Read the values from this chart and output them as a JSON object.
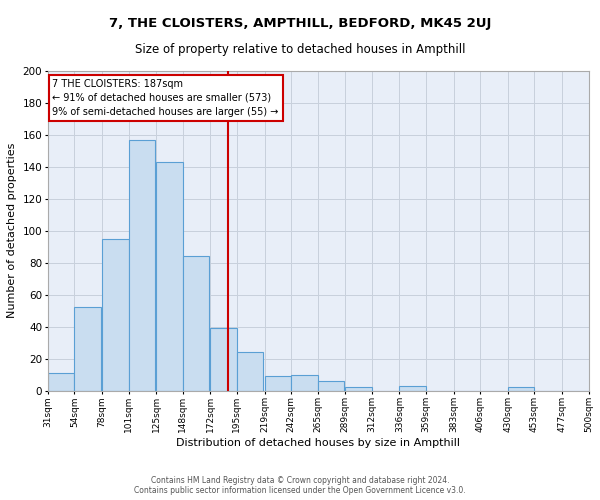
{
  "title": "7, THE CLOISTERS, AMPTHILL, BEDFORD, MK45 2UJ",
  "subtitle": "Size of property relative to detached houses in Ampthill",
  "xlabel": "Distribution of detached houses by size in Ampthill",
  "ylabel": "Number of detached properties",
  "bar_left_edges": [
    31,
    54,
    78,
    101,
    125,
    148,
    172,
    195,
    219,
    242,
    265,
    289,
    312,
    336,
    359,
    383,
    406,
    430,
    453,
    477
  ],
  "bar_heights": [
    11,
    52,
    95,
    157,
    143,
    84,
    39,
    24,
    9,
    10,
    6,
    2,
    0,
    3,
    0,
    0,
    0,
    2,
    0,
    0
  ],
  "bin_width": 23,
  "bar_color": "#c9ddf0",
  "bar_edge_color": "#5a9fd4",
  "grid_color": "#c8d0dc",
  "bg_color": "#e8eef8",
  "red_line_x": 187,
  "annotation_text": "7 THE CLOISTERS: 187sqm\n← 91% of detached houses are smaller (573)\n9% of semi-detached houses are larger (55) →",
  "annotation_box_color": "#ffffff",
  "annotation_box_edge": "#cc0000",
  "tick_labels": [
    "31sqm",
    "54sqm",
    "78sqm",
    "101sqm",
    "125sqm",
    "148sqm",
    "172sqm",
    "195sqm",
    "219sqm",
    "242sqm",
    "265sqm",
    "289sqm",
    "312sqm",
    "336sqm",
    "359sqm",
    "383sqm",
    "406sqm",
    "430sqm",
    "453sqm",
    "477sqm",
    "500sqm"
  ],
  "ylim": [
    0,
    200
  ],
  "yticks": [
    0,
    20,
    40,
    60,
    80,
    100,
    120,
    140,
    160,
    180,
    200
  ],
  "footer1": "Contains HM Land Registry data © Crown copyright and database right 2024.",
  "footer2": "Contains public sector information licensed under the Open Government Licence v3.0."
}
